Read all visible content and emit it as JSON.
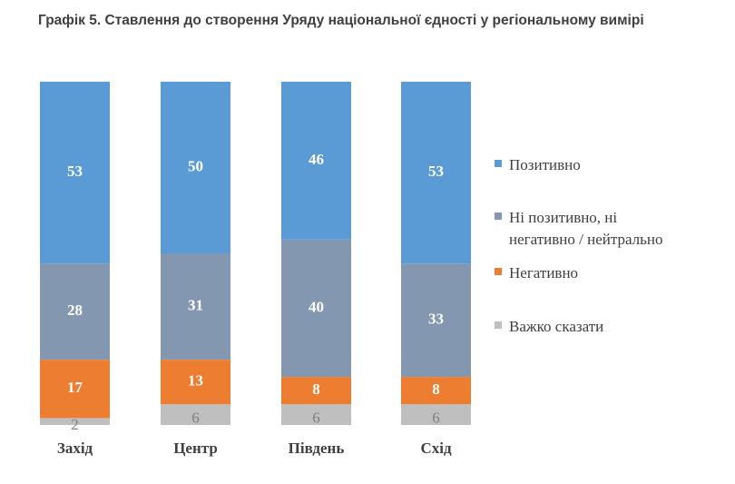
{
  "chart_data": {
    "type": "bar",
    "stacked": true,
    "title": "Графік 5. Ставлення до створення Уряду національної єдності у регіональному вимірі",
    "categories": [
      "Захід",
      "Центр",
      "Південь",
      "Схід"
    ],
    "series": [
      {
        "name": "Позитивно",
        "color": "#5B9BD5",
        "label_color": "#ffffff",
        "values": [
          53,
          50,
          46,
          53
        ]
      },
      {
        "name": "Ні позитивно, ні\nнегативно / нейтрально",
        "color": "#8497B0",
        "label_color": "#ffffff",
        "values": [
          28,
          31,
          40,
          33
        ]
      },
      {
        "name": "Негативно",
        "color": "#ED7D31",
        "label_color": "#ffffff",
        "values": [
          17,
          13,
          8,
          8
        ]
      },
      {
        "name": "Важко сказати",
        "color": "#BFBFBF",
        "label_color": "#7f7f7f",
        "values": [
          2,
          6,
          6,
          6
        ]
      }
    ],
    "legend_position": "right",
    "grid": false
  }
}
